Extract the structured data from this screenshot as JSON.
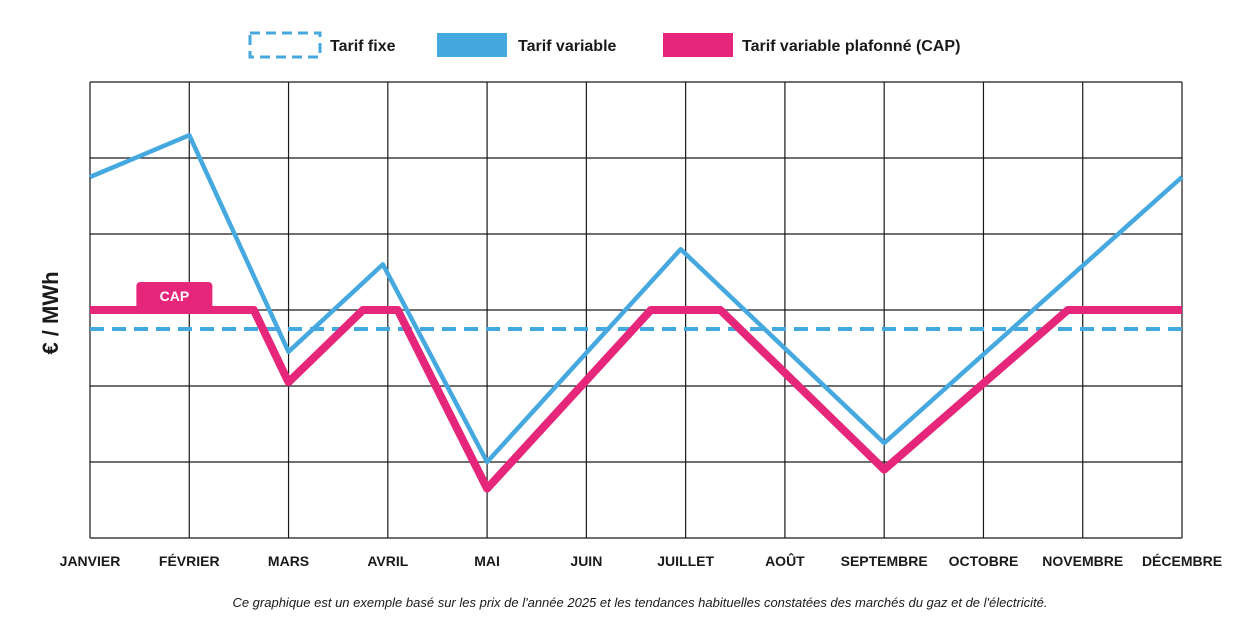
{
  "chart_data": {
    "type": "line",
    "categories": [
      "JANVIER",
      "FÉVRIER",
      "MARS",
      "AVRIL",
      "MAI",
      "JUIN",
      "JUILLET",
      "AOÛT",
      "SEPTEMBRE",
      "OCTOBRE",
      "NOVEMBRE",
      "DÉCEMBRE"
    ],
    "ylabel": "€ / MWh",
    "xlabel": "",
    "ylim": [
      0,
      6
    ],
    "grid": true,
    "legend": "top-center",
    "series": [
      {
        "name": "Tarif fixe",
        "color": "#45a9e0",
        "style": "dashed",
        "points": [
          [
            0,
            2.75
          ],
          [
            11,
            2.75
          ]
        ]
      },
      {
        "name": "Tarif variable",
        "color": "#45a9e0",
        "style": "solid",
        "points": [
          [
            0,
            4.75
          ],
          [
            1,
            5.3
          ],
          [
            2,
            2.45
          ],
          [
            2.95,
            3.6
          ],
          [
            4,
            1.0
          ],
          [
            5.95,
            3.8
          ],
          [
            8,
            1.25
          ],
          [
            11,
            4.75
          ]
        ]
      },
      {
        "name": "Tarif variable plafonné (CAP)",
        "color": "#e5267a",
        "style": "solid",
        "points": [
          [
            0,
            3.0
          ],
          [
            1.65,
            3.0
          ],
          [
            2,
            2.05
          ],
          [
            2.75,
            3.0
          ],
          [
            3.1,
            3.0
          ],
          [
            4,
            0.65
          ],
          [
            5.65,
            3.0
          ],
          [
            6.35,
            3.0
          ],
          [
            8,
            0.9
          ],
          [
            9.85,
            3.0
          ],
          [
            11,
            3.0
          ]
        ]
      }
    ],
    "annotations": [
      {
        "text": "CAP",
        "x": 0.85,
        "y": 3.0
      }
    ],
    "caption": "Ce graphique est un exemple basé sur les prix de l'année 2025 et les tendances habituelles constatées des marchés du gaz et de l'électricité."
  }
}
